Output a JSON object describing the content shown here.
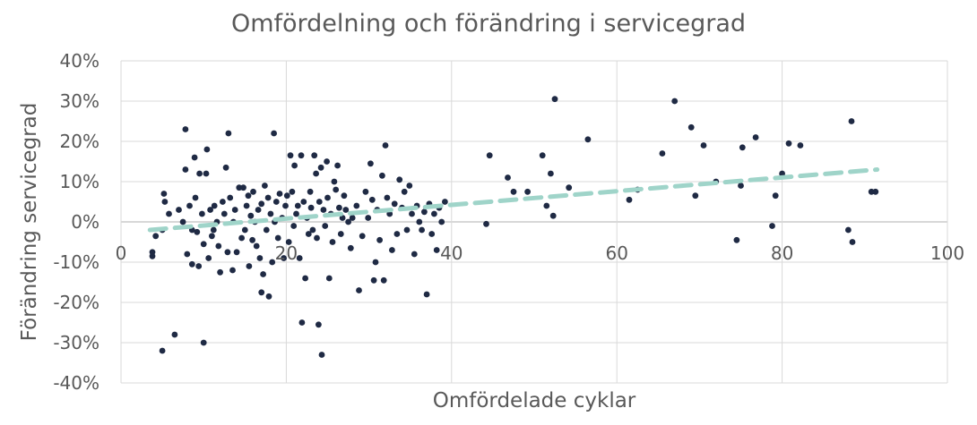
{
  "chart_data": {
    "type": "scatter",
    "title": "Omfördelning och förändring i servicegrad",
    "xlabel": "Omfördelade cyklar",
    "ylabel": "Förändring servicegrad",
    "xlim": [
      0,
      100
    ],
    "ylim": [
      -0.4,
      0.4
    ],
    "x_ticks": [
      "0",
      "20",
      "40",
      "60",
      "80",
      "100"
    ],
    "y_ticks": [
      "40%",
      "30%",
      "20%",
      "10%",
      "0%",
      "-10%",
      "-20%",
      "-30%",
      "-40%"
    ],
    "colors": {
      "points": "#1f2a44",
      "trendline": "#9fd4c9",
      "grid": "#d9d9d9",
      "text": "#595959"
    },
    "trendline": {
      "type": "linear",
      "start": [
        3.5,
        -0.02
      ],
      "end": [
        91.5,
        0.13
      ]
    },
    "points": [
      [
        3.8,
        -0.085
      ],
      [
        3.8,
        -0.075
      ],
      [
        4.2,
        -0.035
      ],
      [
        5.0,
        -0.02
      ],
      [
        5.2,
        0.07
      ],
      [
        5.3,
        0.05
      ],
      [
        5.0,
        -0.32
      ],
      [
        5.8,
        0.02
      ],
      [
        6.5,
        -0.28
      ],
      [
        7.0,
        0.03
      ],
      [
        7.5,
        0.0
      ],
      [
        7.8,
        0.13
      ],
      [
        7.8,
        0.23
      ],
      [
        8.0,
        -0.08
      ],
      [
        8.3,
        0.04
      ],
      [
        8.6,
        -0.105
      ],
      [
        8.6,
        -0.02
      ],
      [
        8.9,
        0.16
      ],
      [
        9.0,
        0.06
      ],
      [
        9.2,
        -0.025
      ],
      [
        9.4,
        -0.11
      ],
      [
        9.5,
        0.12
      ],
      [
        9.8,
        0.02
      ],
      [
        10.0,
        -0.3
      ],
      [
        10.0,
        -0.055
      ],
      [
        10.3,
        0.12
      ],
      [
        10.4,
        0.18
      ],
      [
        10.6,
        -0.09
      ],
      [
        10.8,
        0.03
      ],
      [
        11.0,
        -0.035
      ],
      [
        11.2,
        -0.02
      ],
      [
        11.3,
        0.04
      ],
      [
        11.6,
        0.0
      ],
      [
        11.8,
        -0.06
      ],
      [
        12.0,
        -0.125
      ],
      [
        12.3,
        0.05
      ],
      [
        12.5,
        0.02
      ],
      [
        12.7,
        0.135
      ],
      [
        12.9,
        -0.075
      ],
      [
        13.0,
        0.22
      ],
      [
        13.2,
        0.06
      ],
      [
        13.5,
        -0.12
      ],
      [
        13.6,
        0.0
      ],
      [
        13.8,
        0.03
      ],
      [
        14.0,
        -0.075
      ],
      [
        14.3,
        0.085
      ],
      [
        14.6,
        -0.04
      ],
      [
        14.8,
        0.085
      ],
      [
        15.0,
        -0.02
      ],
      [
        15.2,
        0.04
      ],
      [
        15.4,
        0.065
      ],
      [
        15.5,
        -0.11
      ],
      [
        15.7,
        0.015
      ],
      [
        15.9,
        -0.045
      ],
      [
        16.0,
        0.075
      ],
      [
        16.2,
        0.0
      ],
      [
        16.4,
        -0.06
      ],
      [
        16.6,
        0.03
      ],
      [
        16.8,
        -0.09
      ],
      [
        17.0,
        0.045
      ],
      [
        17.0,
        -0.175
      ],
      [
        17.2,
        -0.13
      ],
      [
        17.4,
        0.09
      ],
      [
        17.6,
        -0.02
      ],
      [
        17.8,
        0.06
      ],
      [
        17.9,
        -0.185
      ],
      [
        18.1,
        0.02
      ],
      [
        18.3,
        -0.1
      ],
      [
        18.5,
        0.22
      ],
      [
        18.6,
        0.0
      ],
      [
        18.8,
        0.05
      ],
      [
        19.0,
        -0.04
      ],
      [
        19.2,
        0.07
      ],
      [
        19.5,
        0.01
      ],
      [
        19.7,
        -0.09
      ],
      [
        19.9,
        0.04
      ],
      [
        20.1,
        0.065
      ],
      [
        20.3,
        -0.05
      ],
      [
        20.5,
        0.165
      ],
      [
        20.7,
        0.075
      ],
      [
        20.9,
        -0.01
      ],
      [
        21.0,
        0.14
      ],
      [
        21.2,
        0.02
      ],
      [
        21.4,
        0.04
      ],
      [
        21.6,
        -0.09
      ],
      [
        21.8,
        0.165
      ],
      [
        21.9,
        -0.25
      ],
      [
        22.1,
        0.05
      ],
      [
        22.3,
        -0.14
      ],
      [
        22.5,
        0.01
      ],
      [
        22.7,
        -0.03
      ],
      [
        22.9,
        0.075
      ],
      [
        23.0,
        0.035
      ],
      [
        23.2,
        -0.02
      ],
      [
        23.4,
        0.165
      ],
      [
        23.6,
        0.12
      ],
      [
        23.7,
        -0.04
      ],
      [
        23.9,
        -0.255
      ],
      [
        24.0,
        0.05
      ],
      [
        24.2,
        0.135
      ],
      [
        24.3,
        -0.33
      ],
      [
        24.5,
        0.03
      ],
      [
        24.7,
        -0.01
      ],
      [
        24.9,
        0.15
      ],
      [
        25.0,
        0.06
      ],
      [
        25.2,
        -0.14
      ],
      [
        25.4,
        0.02
      ],
      [
        25.6,
        -0.05
      ],
      [
        25.8,
        0.1
      ],
      [
        26.0,
        0.08
      ],
      [
        26.2,
        0.14
      ],
      [
        26.4,
        0.035
      ],
      [
        26.6,
        -0.03
      ],
      [
        26.8,
        0.01
      ],
      [
        27.0,
        0.065
      ],
      [
        27.2,
        0.03
      ],
      [
        27.5,
        0.0
      ],
      [
        27.8,
        -0.065
      ],
      [
        28.0,
        0.01
      ],
      [
        28.5,
        0.04
      ],
      [
        28.8,
        -0.17
      ],
      [
        29.2,
        -0.035
      ],
      [
        29.6,
        0.075
      ],
      [
        29.9,
        0.01
      ],
      [
        30.2,
        0.145
      ],
      [
        30.4,
        0.055
      ],
      [
        30.6,
        -0.145
      ],
      [
        30.8,
        -0.1
      ],
      [
        31.0,
        0.03
      ],
      [
        31.3,
        -0.045
      ],
      [
        31.6,
        0.115
      ],
      [
        31.8,
        -0.145
      ],
      [
        32.0,
        0.19
      ],
      [
        32.2,
        0.06
      ],
      [
        32.5,
        0.02
      ],
      [
        32.8,
        -0.07
      ],
      [
        33.1,
        0.045
      ],
      [
        33.4,
        -0.03
      ],
      [
        33.7,
        0.105
      ],
      [
        34.0,
        0.035
      ],
      [
        34.3,
        0.075
      ],
      [
        34.6,
        -0.02
      ],
      [
        34.9,
        0.09
      ],
      [
        35.2,
        0.02
      ],
      [
        35.5,
        -0.08
      ],
      [
        35.8,
        0.04
      ],
      [
        36.1,
        0.0
      ],
      [
        36.4,
        -0.02
      ],
      [
        36.7,
        0.025
      ],
      [
        37.0,
        -0.18
      ],
      [
        37.3,
        0.045
      ],
      [
        37.6,
        -0.03
      ],
      [
        37.9,
        0.02
      ],
      [
        38.2,
        -0.07
      ],
      [
        38.5,
        0.035
      ],
      [
        38.8,
        0.0
      ],
      [
        39.2,
        0.05
      ],
      [
        44.2,
        -0.005
      ],
      [
        44.6,
        0.165
      ],
      [
        46.8,
        0.11
      ],
      [
        47.5,
        0.075
      ],
      [
        49.2,
        0.075
      ],
      [
        51.0,
        0.165
      ],
      [
        51.5,
        0.04
      ],
      [
        52.0,
        0.12
      ],
      [
        52.3,
        0.015
      ],
      [
        52.5,
        0.305
      ],
      [
        54.2,
        0.085
      ],
      [
        56.5,
        0.205
      ],
      [
        61.5,
        0.055
      ],
      [
        62.5,
        0.08
      ],
      [
        65.5,
        0.17
      ],
      [
        67.0,
        0.3
      ],
      [
        69.0,
        0.235
      ],
      [
        69.5,
        0.065
      ],
      [
        70.5,
        0.19
      ],
      [
        72.0,
        0.1
      ],
      [
        74.5,
        -0.045
      ],
      [
        75.0,
        0.09
      ],
      [
        75.2,
        0.185
      ],
      [
        76.8,
        0.21
      ],
      [
        78.8,
        -0.01
      ],
      [
        79.2,
        0.065
      ],
      [
        80.0,
        0.12
      ],
      [
        80.8,
        0.195
      ],
      [
        82.2,
        0.19
      ],
      [
        88.0,
        -0.02
      ],
      [
        88.4,
        0.25
      ],
      [
        88.5,
        -0.05
      ],
      [
        90.8,
        0.075
      ],
      [
        91.3,
        0.075
      ]
    ]
  }
}
